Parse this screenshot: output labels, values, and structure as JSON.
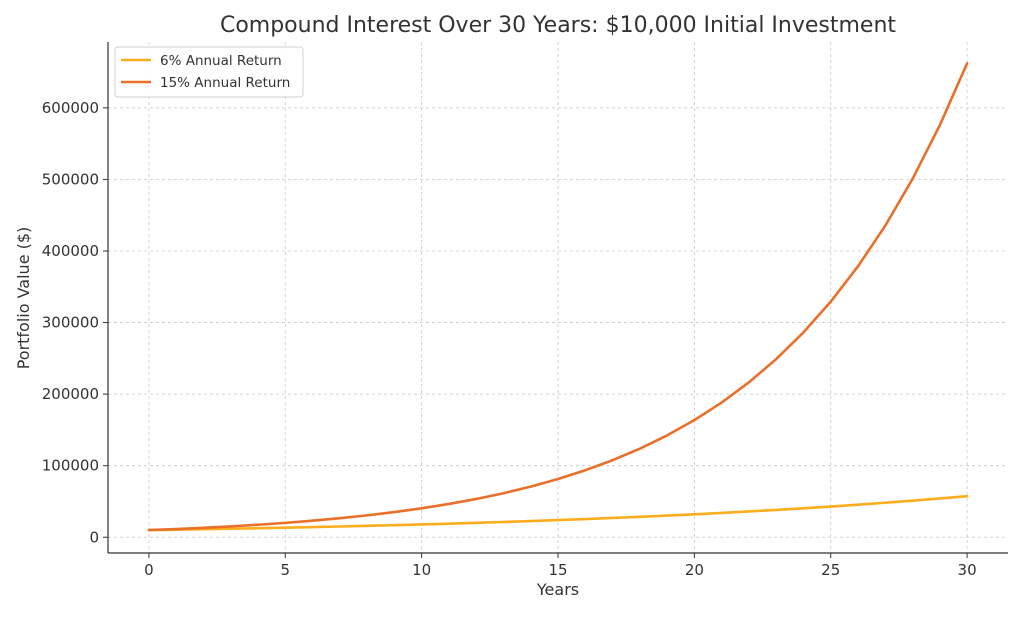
{
  "chart_data": {
    "type": "line",
    "title": "Compound Interest Over 30 Years: $10,000 Initial Investment",
    "xlabel": "Years",
    "ylabel": "Portfolio Value ($)",
    "xlim": [
      -1.5,
      31.5
    ],
    "ylim": [
      -22000,
      692000
    ],
    "xticks": [
      0,
      5,
      10,
      15,
      20,
      25,
      30
    ],
    "yticks": [
      0,
      100000,
      200000,
      300000,
      400000,
      500000,
      600000
    ],
    "grid": true,
    "legend_position": "top-left",
    "x": [
      0,
      1,
      2,
      3,
      4,
      5,
      6,
      7,
      8,
      9,
      10,
      11,
      12,
      13,
      14,
      15,
      16,
      17,
      18,
      19,
      20,
      21,
      22,
      23,
      24,
      25,
      26,
      27,
      28,
      29,
      30
    ],
    "series": [
      {
        "name": "6% Annual Return",
        "color": "#fbad1e",
        "values": [
          10000,
          10600,
          11236,
          11910,
          12625,
          13382,
          14185,
          15036,
          15938,
          16895,
          17908,
          18983,
          20122,
          21329,
          22609,
          23966,
          25404,
          26928,
          28543,
          30256,
          32071,
          33996,
          36035,
          38197,
          40489,
          42919,
          45494,
          48223,
          51117,
          54184,
          57435
        ]
      },
      {
        "name": "15% Annual Return",
        "color": "#e8702a",
        "values": [
          10000,
          11500,
          13225,
          15209,
          17490,
          20114,
          23131,
          26600,
          30590,
          35179,
          40456,
          46524,
          53503,
          61528,
          70757,
          81371,
          93576,
          107613,
          123755,
          142318,
          163665,
          188215,
          216447,
          248915,
          286252,
          329190,
          378568,
          435353,
          500656,
          575755,
          662118
        ]
      }
    ]
  }
}
